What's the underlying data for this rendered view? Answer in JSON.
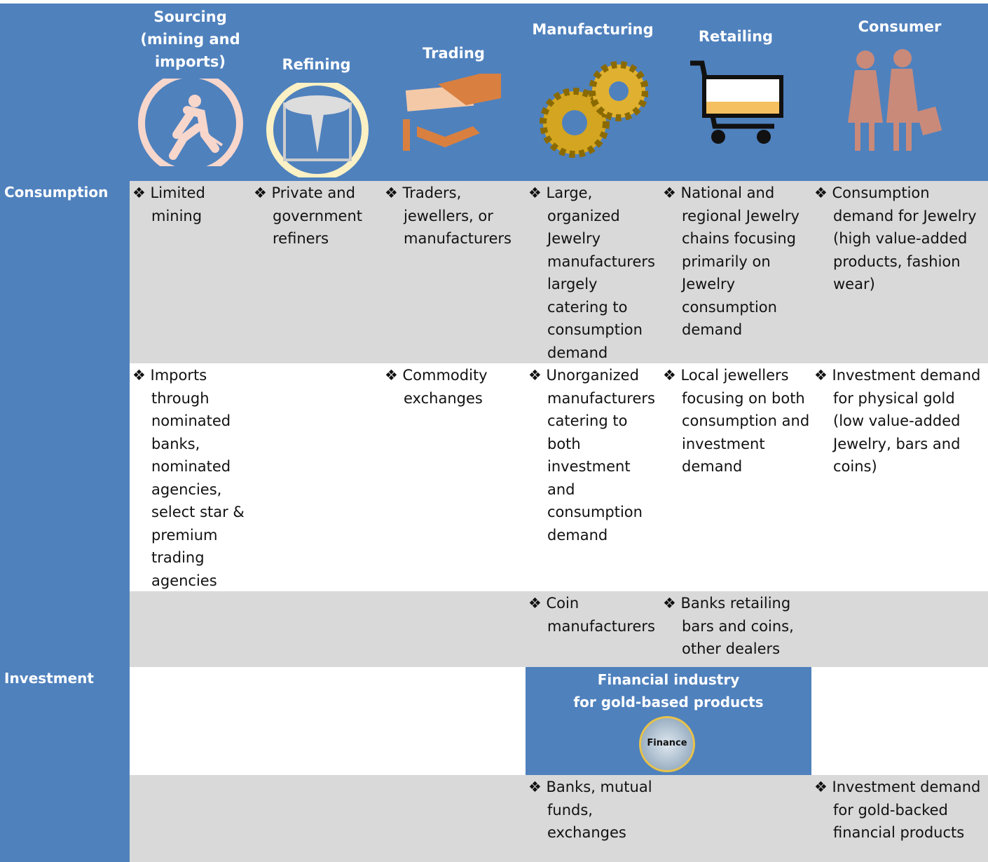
{
  "columns": [
    "Sourcing (mining and imports)",
    "Refining",
    "Trading",
    "Manufacturing",
    "Retailing",
    "Consumer"
  ],
  "row_labels": [
    "Consumption",
    "Investment"
  ],
  "rows": [
    {
      "cells": [
        "❖ Limited mining",
        "❖ Private and government refiners",
        "❖ Traders, jewellers, or manufacturers",
        "❖ Large, organized Jewelry manufacturers largely catering to consumption demand",
        "❖ National and regional Jewelry chains focusing primarily on Jewelry consumption demand",
        "❖ Consumption demand for Jewelry (high value-added products, fashion wear)"
      ]
    },
    {
      "cells": [
        "❖ Imports through nominated banks, nominated agencies, select star & premium trading agencies",
        null,
        "❖ Commodity exchanges",
        "❖ Unorganized manufacturers catering to both investment and consumption demand",
        "❖ Local jewellers focusing on both consumption and investment demand",
        "❖ Investment demand for physical gold (low value-added Jewelry, bars and coins)"
      ]
    },
    {
      "cells": [
        null,
        null,
        null,
        "❖ Coin manufacturers",
        "❖ Banks retailing bars and coins, other dealers",
        null
      ]
    },
    {
      "cells": [
        null,
        null,
        null,
        null,
        null,
        null
      ]
    },
    {
      "cells": [
        null,
        null,
        null,
        "❖ Banks, mutual funds, exchanges",
        null,
        "❖ Investment demand for gold-backed financial products"
      ]
    }
  ],
  "financial_box": {
    "title": "Financial industry\nfor gold-based products",
    "icon_label": "Finance"
  }
}
